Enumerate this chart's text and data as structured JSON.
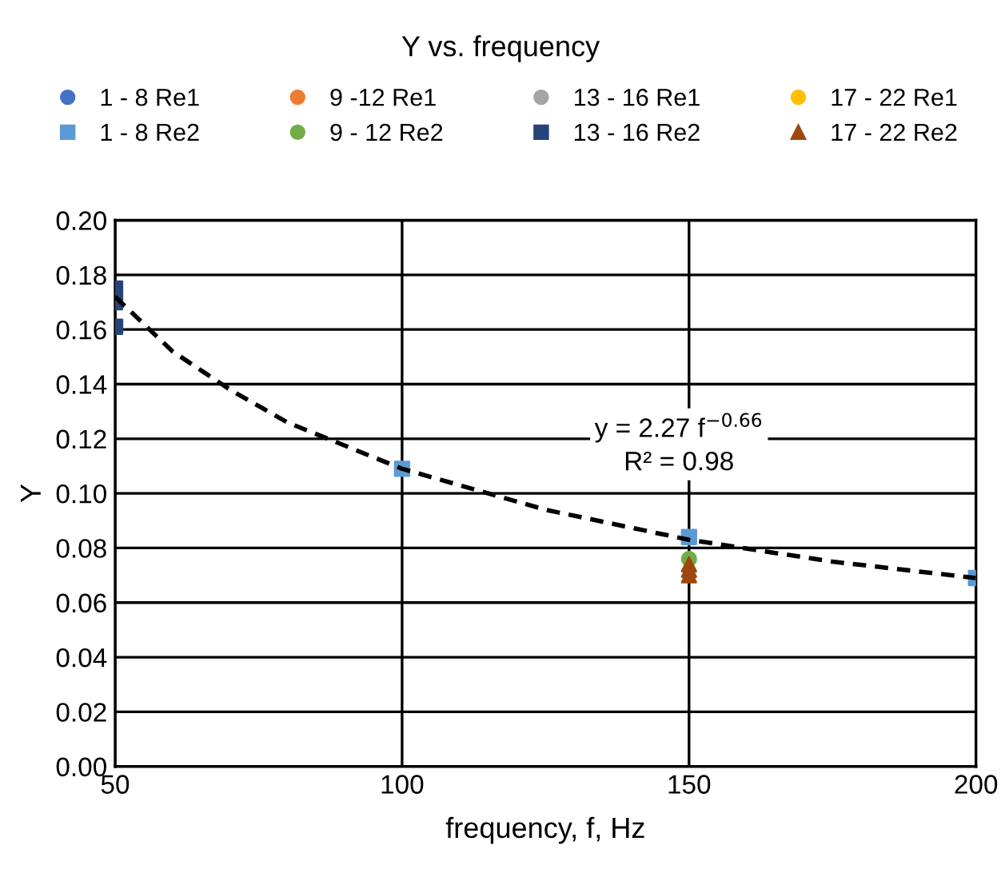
{
  "chart_data": {
    "type": "scatter",
    "title": "Y vs. frequency",
    "xlabel": "frequency, f, Hz",
    "ylabel": "Y",
    "xlim": [
      50,
      200
    ],
    "xticks": [
      50,
      100,
      150,
      200
    ],
    "ylim": [
      0,
      0.2
    ],
    "yticks": [
      {
        "value": 0,
        "label": "0.00"
      },
      {
        "value": 0.02,
        "label": "0.02"
      },
      {
        "value": 0.04,
        "label": "0.04"
      },
      {
        "value": 0.06,
        "label": "0.06"
      },
      {
        "value": 0.08,
        "label": "0.08"
      },
      {
        "value": 0.1,
        "label": "0.10"
      },
      {
        "value": 0.12,
        "label": "0.12"
      },
      {
        "value": 0.14,
        "label": "0.14"
      },
      {
        "value": 0.16,
        "label": "0.16"
      },
      {
        "value": 0.18,
        "label": "0.18"
      },
      {
        "value": 0.2,
        "label": "0.20"
      }
    ],
    "grid": true,
    "legend": "top",
    "series": [
      {
        "name": "1 - 8 Re1",
        "color": "#4472c4",
        "marker": "circle"
      },
      {
        "name": "9 -12 Re1",
        "color": "#ed7d31",
        "marker": "circle"
      },
      {
        "name": "13 - 16 Re1",
        "color": "#a5a5a5",
        "marker": "circle"
      },
      {
        "name": "17 - 22 Re1",
        "color": "#ffc000",
        "marker": "circle"
      },
      {
        "name": "1 - 8 Re2",
        "color": "#5b9bd5",
        "marker": "square",
        "x": [
          100,
          150,
          200
        ],
        "values": [
          0.109,
          0.084,
          0.069
        ]
      },
      {
        "name": "9 - 12 Re2",
        "color": "#70ad47",
        "marker": "circle",
        "x": [
          150
        ],
        "values": [
          0.076
        ]
      },
      {
        "name": "13 - 16 Re2",
        "color": "#264478",
        "marker": "square",
        "x": [
          50,
          50,
          50
        ],
        "values": [
          0.175,
          0.17,
          0.161
        ]
      },
      {
        "name": "17 - 22 Re2",
        "color": "#9e480e",
        "marker": "triangle",
        "x": [
          150,
          150,
          150
        ],
        "values": [
          0.074,
          0.072,
          0.07
        ]
      },
      {
        "type": "line",
        "color": "#000000",
        "marker": "none",
        "line_style": "dashed",
        "x": [
          50,
          60,
          70,
          80,
          100,
          125,
          150,
          175,
          200
        ],
        "values": [
          0.172,
          0.152,
          0.138,
          0.126,
          0.109,
          0.094,
          0.083,
          0.075,
          0.069
        ]
      }
    ],
    "annotations": [
      "y = 2.27 f$^{−0.66}$",
      "R² = 0.98"
    ]
  }
}
